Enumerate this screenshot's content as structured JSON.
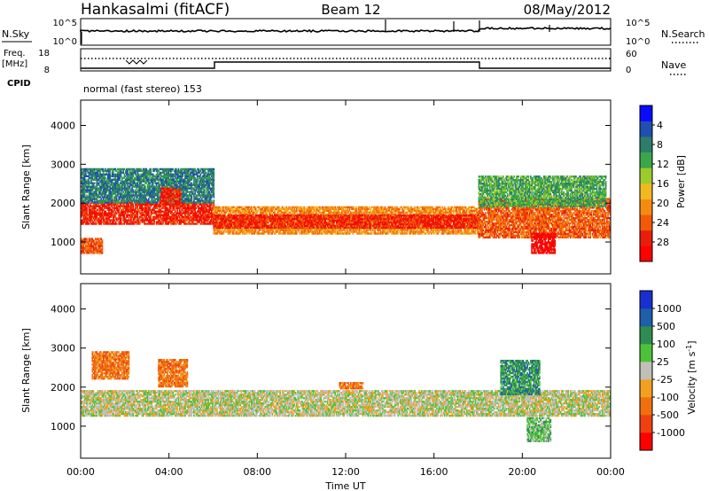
{
  "header": {
    "station": "Hankasalmi (fitACF)",
    "beam": "Beam 12",
    "date": "08/May/2012"
  },
  "strips": {
    "nsky_label": "N.Sky",
    "nsearch_label": "N.Search",
    "nsky_ticks": [
      "10^5",
      "10^0"
    ],
    "nsearch_ticks": [
      "10^5",
      "10^0"
    ],
    "freq_label_1": "Freq.",
    "freq_label_2": "[MHz]",
    "freq_ticks": [
      "18",
      "8"
    ],
    "nave_label": "Nave",
    "nave_ticks": [
      "60",
      "0"
    ],
    "cpid_label": "CPID",
    "cpid_text": "normal (fast stereo) 153"
  },
  "chart_data": [
    {
      "type": "heatmap",
      "name": "power-panel",
      "xlabel": "",
      "ylabel": "Slant Range [km]",
      "xlim": [
        0,
        24
      ],
      "ylim": [
        180,
        4650
      ],
      "yticks": [
        "1000",
        "2000",
        "3000",
        "4000"
      ],
      "yticks_values": [
        1000,
        2000,
        3000,
        4000
      ],
      "colorbar": {
        "label": "Power [dB]",
        "ticks": [
          "4",
          "8",
          "12",
          "16",
          "20",
          "24",
          "28"
        ],
        "colors": [
          "#0a0aff",
          "#1f4fb0",
          "#2e7d6a",
          "#3aa84a",
          "#9ccc2a",
          "#f2b820",
          "#f58a10",
          "#f25a0a",
          "#e81e0a",
          "#ff0000"
        ]
      },
      "regions": [
        {
          "t0": 0.0,
          "t1": 6.0,
          "r0": 1450,
          "r1": 2000,
          "level": 8
        },
        {
          "t0": 0.0,
          "t1": 6.0,
          "r0": 2000,
          "r1": 2900,
          "level": 2
        },
        {
          "t0": 0.0,
          "t1": 1.0,
          "r0": 700,
          "r1": 1100,
          "level": 7
        },
        {
          "t0": 3.6,
          "t1": 4.5,
          "r0": 1950,
          "r1": 2400,
          "level": 8
        },
        {
          "t0": 6.0,
          "t1": 18.0,
          "r0": 1200,
          "r1": 1900,
          "level": 6
        },
        {
          "t0": 6.0,
          "t1": 18.0,
          "r0": 1350,
          "r1": 1700,
          "level": 8
        },
        {
          "t0": 18.0,
          "t1": 24.0,
          "r0": 1100,
          "r1": 2100,
          "level": 7
        },
        {
          "t0": 20.4,
          "t1": 21.5,
          "r0": 700,
          "r1": 1200,
          "level": 9
        },
        {
          "t0": 18.0,
          "t1": 23.8,
          "r0": 1900,
          "r1": 2700,
          "level": 3
        }
      ]
    },
    {
      "type": "heatmap",
      "name": "velocity-panel",
      "xlabel": "Time UT",
      "ylabel": "Slant Range [km]",
      "xlim": [
        0,
        24
      ],
      "ylim": [
        180,
        4650
      ],
      "xticks": [
        "00:00",
        "04:00",
        "08:00",
        "12:00",
        "16:00",
        "20:00",
        "00:00"
      ],
      "xticks_values": [
        0,
        4,
        8,
        12,
        16,
        20,
        24
      ],
      "yticks": [
        "1000",
        "2000",
        "3000",
        "4000"
      ],
      "yticks_values": [
        1000,
        2000,
        3000,
        4000
      ],
      "colorbar": {
        "label": "Velocity [m s-1]",
        "label_main": "Velocity [m s",
        "label_sup": "-1",
        "label_end": "]",
        "ticks": [
          "1000",
          "500",
          "100",
          "25",
          "-25",
          "-100",
          "-500",
          "-1000"
        ],
        "colors": [
          "#1a2fd0",
          "#1f5ea8",
          "#2f8c50",
          "#4cc23a",
          "#c0c0b8",
          "#f2a020",
          "#f07010",
          "#f04010",
          "#ff0000"
        ]
      },
      "regions": [
        {
          "t0": 0.0,
          "t1": 24.0,
          "r0": 1250,
          "r1": 1900,
          "level": 4
        },
        {
          "t0": 0.5,
          "t1": 2.2,
          "r0": 2200,
          "r1": 2900,
          "level": 6
        },
        {
          "t0": 3.5,
          "t1": 4.8,
          "r0": 2000,
          "r1": 2700,
          "level": 6
        },
        {
          "t0": 19.0,
          "t1": 20.8,
          "r0": 1800,
          "r1": 2700,
          "level": 2
        },
        {
          "t0": 20.2,
          "t1": 21.3,
          "r0": 600,
          "r1": 1200,
          "level": 3
        },
        {
          "t0": 11.7,
          "t1": 12.8,
          "r0": 1950,
          "r1": 2100,
          "level": 6
        }
      ]
    }
  ]
}
